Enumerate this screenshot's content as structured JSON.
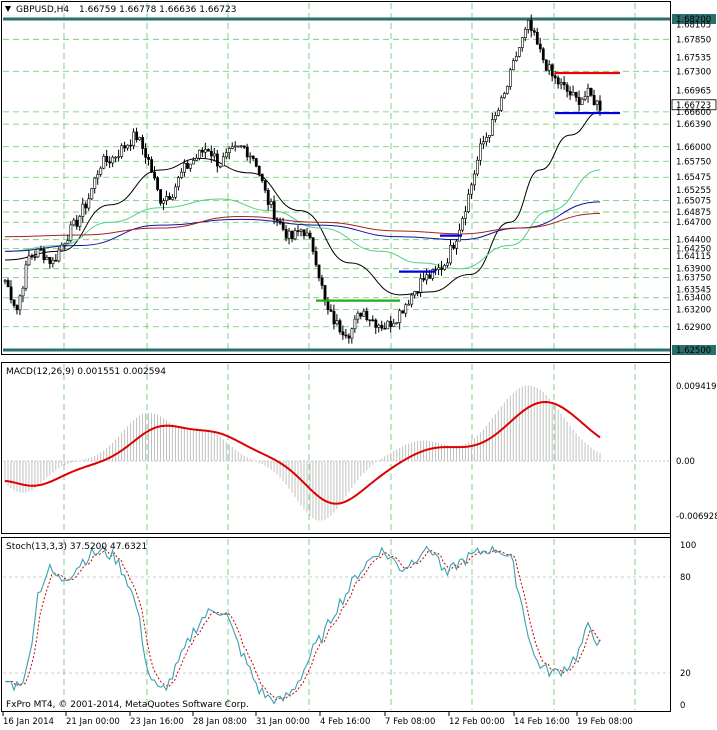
{
  "header": {
    "symbol": "GBPUSD,H4",
    "ohlc": "1.66759 1.66778 1.66636 1.66723"
  },
  "price_axis_labels": [
    "1.68200",
    "1.68105",
    "1.67850",
    "1.67535",
    "1.67300",
    "1.66965",
    "1.66723",
    "1.66600",
    "1.66390",
    "1.66000",
    "1.65750",
    "1.65475",
    "1.65255",
    "1.65075",
    "1.64875",
    "1.64700",
    "1.64400",
    "1.64250",
    "1.64115",
    "1.63900",
    "1.63750",
    "1.63545",
    "1.63400",
    "1.63200",
    "1.62900",
    "1.62500"
  ],
  "macd": {
    "label": "MACD(12,26,9) 0.001551 0.002594",
    "axis": [
      "0.009419",
      "0.00",
      "-0.006928"
    ]
  },
  "stoch": {
    "label": "Stoch(13,3,3) 37.5200 47.6321",
    "axis": [
      "100",
      "80",
      "20",
      "0"
    ]
  },
  "watermark": "FxPro MT4, © 2001-2014, MetaQuotes Software Corp.",
  "time_labels": [
    "16 Jan 2014",
    "21 Jan 00:00",
    "23 Jan 16:00",
    "28 Jan 08:00",
    "31 Jan 00:00",
    "4 Feb 16:00",
    "7 Feb 08:00",
    "12 Feb 00:00",
    "14 Feb 16:00",
    "19 Feb 08:00"
  ],
  "colors": {
    "frame": "#2b6e6e",
    "grid": "#64c864",
    "macd_hist": "#c0c0c0",
    "macd_signal": "#dd0000",
    "stoch_main": "#3aa0b0",
    "stoch_signal": "#cc0000",
    "ma_black": "#000000",
    "ma_green": "#54d08a",
    "ma_blue": "#1010a0",
    "ma_red": "#aa2020",
    "level_red": "#ee0000",
    "level_blue": "#0000dd",
    "level_green": "#22aa22"
  },
  "chart_data": {
    "type": "candlestick",
    "symbol": "GBPUSD",
    "timeframe": "H4",
    "period": "16 Jan 2014 – 20 Feb 2014",
    "y_axis": {
      "min": 1.625,
      "max": 1.682
    },
    "horizontal_levels": [
      1.682,
      1.625
    ],
    "drawn_levels": [
      {
        "color": "green",
        "value": 1.6335,
        "from": "4 Feb",
        "to": "7 Feb"
      },
      {
        "color": "blue",
        "value": 1.6385,
        "from": "7 Feb",
        "to": "10 Feb"
      },
      {
        "color": "blue",
        "value": 1.6447,
        "from": "11 Feb",
        "to": "12 Feb"
      },
      {
        "color": "red",
        "value": 1.6727,
        "from": "17 Feb",
        "to": "20 Feb"
      },
      {
        "color": "blue",
        "value": 1.6658,
        "from": "17 Feb",
        "to": "20 Feb"
      }
    ],
    "close_path": [
      1.637,
      1.632,
      1.641,
      1.642,
      1.64,
      1.644,
      1.647,
      1.651,
      1.657,
      1.658,
      1.66,
      1.662,
      1.658,
      1.651,
      1.652,
      1.656,
      1.658,
      1.66,
      1.657,
      1.659,
      1.66,
      1.658,
      1.651,
      1.647,
      1.644,
      1.646,
      1.642,
      1.632,
      1.629,
      1.628,
      1.632,
      1.63,
      1.629,
      1.631,
      1.634,
      1.637,
      1.638,
      1.64,
      1.645,
      1.652,
      1.66,
      1.664,
      1.669,
      1.676,
      1.681,
      1.676,
      1.672,
      1.67,
      1.668,
      1.669,
      1.667
    ],
    "indicators": [
      {
        "name": "MACD(12,26,9)",
        "main": 0.001551,
        "signal": 0.002594,
        "range": [
          -0.006928,
          0.009419
        ]
      },
      {
        "name": "Stoch(13,3,3)",
        "main": 37.52,
        "signal": 47.6321,
        "levels": [
          20,
          80
        ]
      }
    ]
  }
}
